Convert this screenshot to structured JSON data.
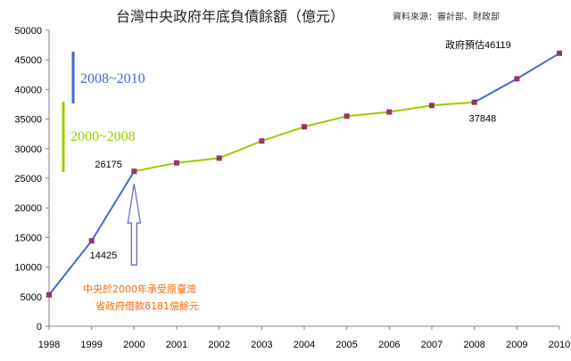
{
  "chart_data": {
    "type": "line",
    "title": "台灣中央政府年底負債餘額（億元）",
    "source": "資料來源：審計部、財政部",
    "categories": [
      "1998",
      "1999",
      "2000",
      "2001",
      "2002",
      "2003",
      "2004",
      "2005",
      "2006",
      "2007",
      "2008",
      "2009",
      "2010"
    ],
    "ylim": [
      0,
      50000
    ],
    "yticks": [
      0,
      5000,
      10000,
      15000,
      20000,
      25000,
      30000,
      35000,
      40000,
      45000,
      50000
    ],
    "grid": false,
    "series": [
      {
        "name": "2000~2008",
        "color": "#99cc00",
        "x": [
          "2000",
          "2001",
          "2002",
          "2003",
          "2004",
          "2005",
          "2006",
          "2007",
          "2008"
        ],
        "values": [
          26175,
          27600,
          28400,
          31300,
          33700,
          35500,
          36200,
          37300,
          37848
        ]
      },
      {
        "name": "2008~2010",
        "color": "#4466dd",
        "x": [
          "1998",
          "1999",
          "2000"
        ],
        "values": [
          5300,
          14425,
          26175
        ]
      },
      {
        "name": "2008~2010",
        "color": "#4466dd",
        "x": [
          "2008",
          "2009",
          "2010"
        ],
        "values": [
          37848,
          41800,
          46119
        ]
      }
    ],
    "markers": {
      "color": "#993366",
      "x": [
        "1998",
        "1999",
        "2000",
        "2001",
        "2002",
        "2003",
        "2004",
        "2005",
        "2006",
        "2007",
        "2008",
        "2009",
        "2010"
      ],
      "values": [
        5300,
        14425,
        26175,
        27600,
        28400,
        31300,
        33700,
        35500,
        36200,
        37300,
        37848,
        41800,
        46119
      ]
    },
    "data_labels": [
      {
        "text": "26175",
        "x": "2000",
        "value": 26175
      },
      {
        "text": "14425",
        "x": "1999",
        "value": 14425
      },
      {
        "text": "37848",
        "x": "2008",
        "value": 37848
      },
      {
        "text": "政府預估46119",
        "x": "2010",
        "value": 46119
      }
    ],
    "legend": [
      {
        "label": "2008~2010",
        "color": "#4466dd"
      },
      {
        "label": "2000~2008",
        "color": "#99cc00"
      }
    ],
    "annotation": {
      "lines": [
        "中央於2000年承受原臺灣",
        "省政府借款8181億餘元"
      ],
      "color": "#ff6600",
      "arrow_x": "2000",
      "arrow_value": 26175
    }
  }
}
